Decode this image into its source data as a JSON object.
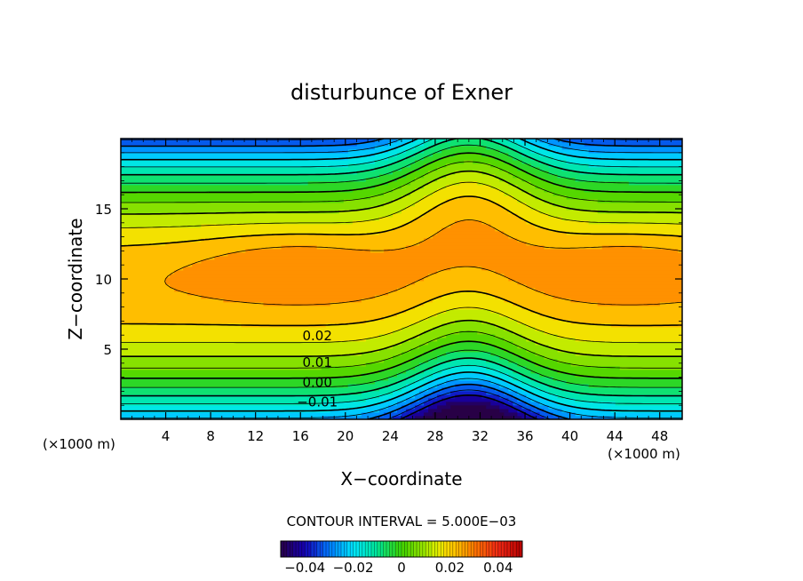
{
  "chart_data": {
    "type": "contour",
    "title": "disturbunce of Exner",
    "xlabel": "X−coordinate",
    "ylabel": "Z−coordinate",
    "x_unit": "(×1000 m)",
    "z_unit": "(×1000 m)",
    "xlim": [
      0,
      50
    ],
    "ylim": [
      0,
      20
    ],
    "x_ticks": [
      4,
      8,
      12,
      16,
      20,
      24,
      28,
      32,
      36,
      40,
      44,
      48
    ],
    "x_tick_labels": [
      "4",
      "8",
      "12",
      "16",
      "20",
      "24",
      "28",
      "32",
      "36",
      "40",
      "44",
      "48"
    ],
    "y_ticks": [
      5,
      10,
      15
    ],
    "y_tick_labels": [
      "5",
      "10",
      "15"
    ],
    "contour_interval_text": "CONTOUR INTERVAL = 5.000E−03",
    "contour_interval": 0.005,
    "contour_labels": [
      {
        "text": "0.02",
        "x": 17.5,
        "z": 6.0
      },
      {
        "text": "0.01",
        "x": 17.5,
        "z": 4.1
      },
      {
        "text": "0.00",
        "x": 17.5,
        "z": 2.7
      },
      {
        "text": "−0.01",
        "x": 17.5,
        "z": 1.3
      }
    ],
    "features": {
      "maxima_centers": [
        {
          "x": 15.8,
          "z": 11.0
        },
        {
          "x": 45,
          "z": 11.0
        }
      ],
      "minimum_center": {
        "x": 31,
        "z": 0
      }
    },
    "colorbar": {
      "min": -0.05,
      "max": 0.05,
      "ticks": [
        -0.04,
        -0.02,
        0,
        0.02,
        0.04
      ],
      "tick_labels": [
        "−0.04",
        "−0.02",
        "0",
        "0.02",
        "0.04"
      ]
    }
  }
}
